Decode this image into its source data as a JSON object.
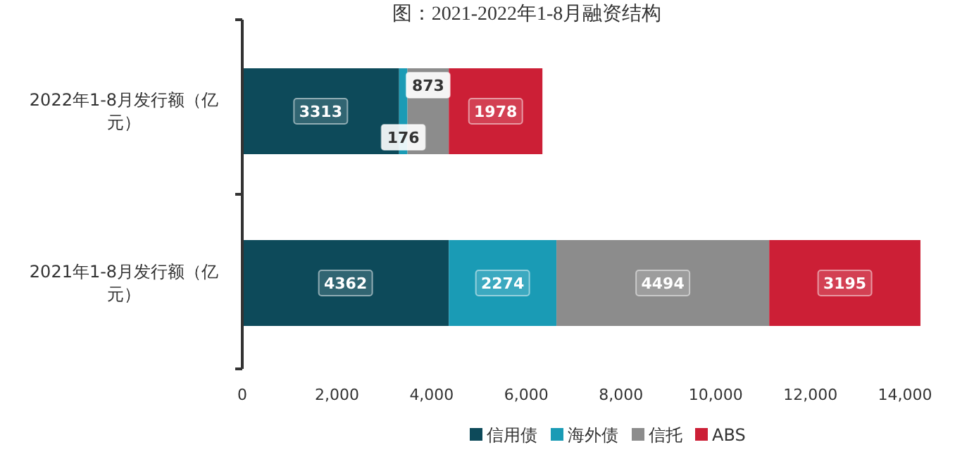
{
  "chart_data": {
    "type": "bar",
    "orientation": "horizontal",
    "stacked": true,
    "title": "图：2021-2022年1-8月融资结构",
    "categories": [
      "2022年1-8月发行额（亿元）",
      "2021年1-8月发行额（亿元）"
    ],
    "series": [
      {
        "name": "信用债",
        "color": "#0d4a5a",
        "values": [
          3313,
          4362
        ]
      },
      {
        "name": "海外债",
        "color": "#1a9bb5",
        "values": [
          176,
          2274
        ]
      },
      {
        "name": "信托",
        "color": "#8c8c8c",
        "values": [
          873,
          4494
        ]
      },
      {
        "name": "ABS",
        "color": "#cc1f36",
        "values": [
          1978,
          3195
        ]
      }
    ],
    "xlim": [
      0,
      14400
    ],
    "xticks": [
      0,
      {
        "value": 2000,
        "label": "2,000"
      },
      {
        "value": 4000,
        "label": "4,000"
      },
      {
        "value": 6000,
        "label": "6,000"
      },
      {
        "value": 8000,
        "label": "8,000"
      },
      {
        "value": 10000,
        "label": "10,000"
      },
      {
        "value": 12000,
        "label": "12,000"
      },
      {
        "value": 14000,
        "label": "14,000"
      }
    ],
    "data_labels": true,
    "legend": "bottom",
    "grid": false
  }
}
